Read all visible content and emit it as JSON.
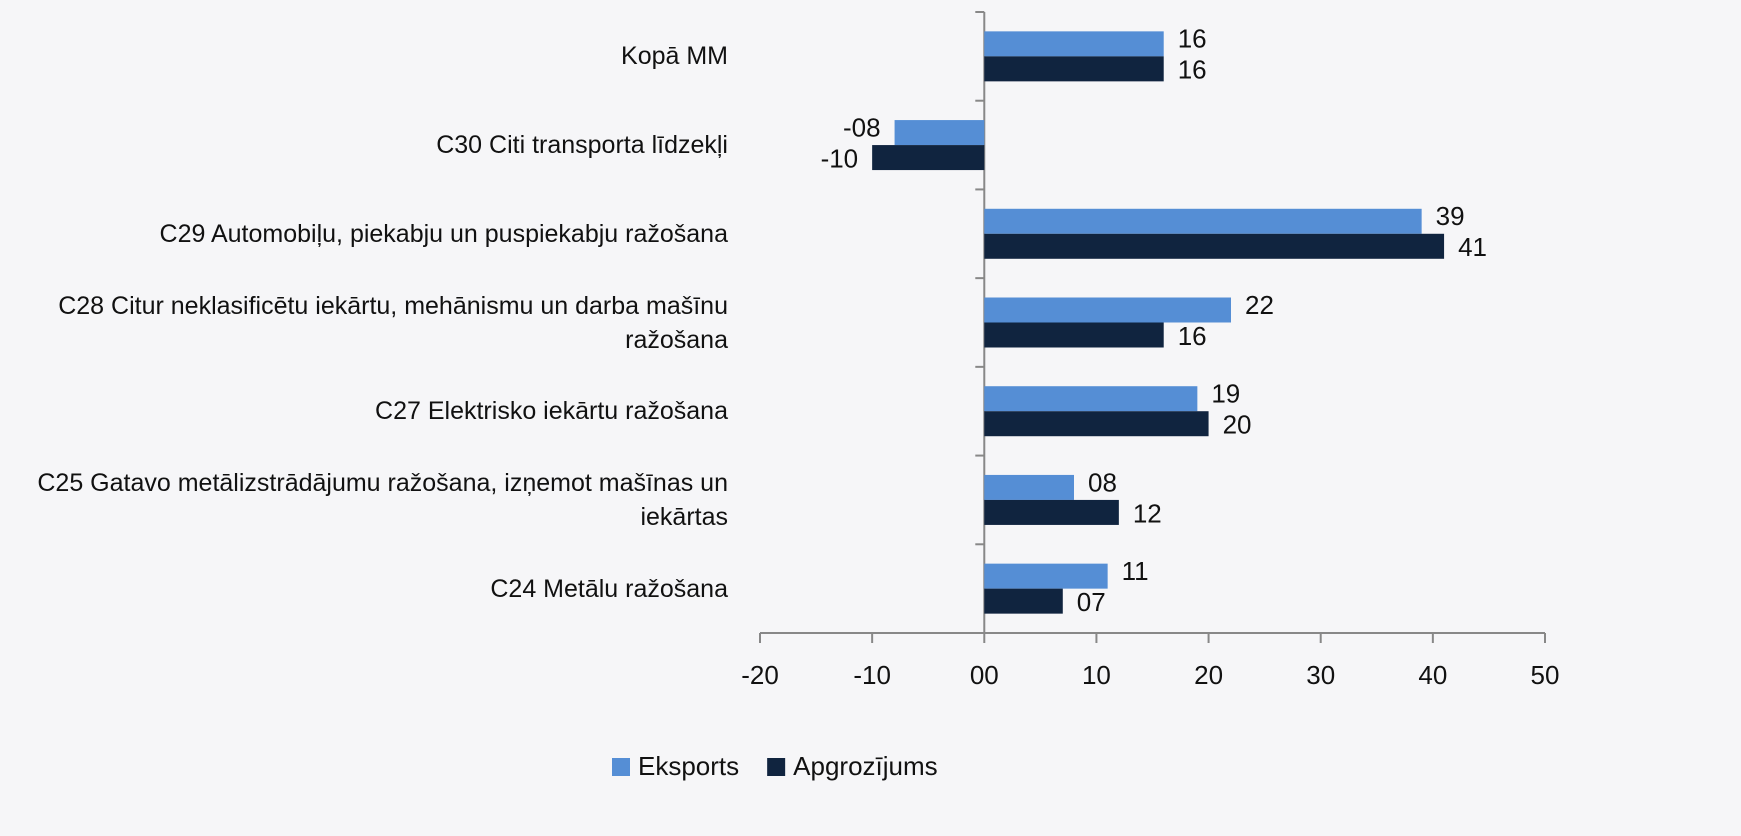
{
  "chart_data": {
    "type": "bar",
    "orientation": "horizontal",
    "categories": [
      "Kopā MM",
      "C30 Citi transporta līdzekļi",
      "C29 Automobiļu, piekabju un puspiekabju ražošana",
      "C28 Citur neklasificētu iekārtu, mehānismu un darba mašīnu ražošana",
      "C27 Elektrisko iekārtu ražošana",
      "C25 Gatavo metālizstrādājumu ražošana, izņemot mašīnas un iekārtas",
      "C24 Metālu ražošana"
    ],
    "series": [
      {
        "name": "Eksports",
        "color": "#558ed5",
        "values": [
          16,
          -8,
          39,
          22,
          19,
          8,
          11
        ],
        "value_labels": [
          "16",
          "-08",
          "39",
          "22",
          "19",
          "08",
          "11"
        ]
      },
      {
        "name": "Apgrozījums",
        "color": "#10243f",
        "values": [
          16,
          -10,
          41,
          16,
          20,
          12,
          7
        ],
        "value_labels": [
          "16",
          "-10",
          "41",
          "16",
          "20",
          "12",
          "07"
        ]
      }
    ],
    "xlim": [
      -20,
      50
    ],
    "xticks": [
      -20,
      -10,
      {
        "value": 0,
        "label": "00"
      },
      10,
      20,
      30,
      40,
      50
    ],
    "legend": "bottom"
  }
}
